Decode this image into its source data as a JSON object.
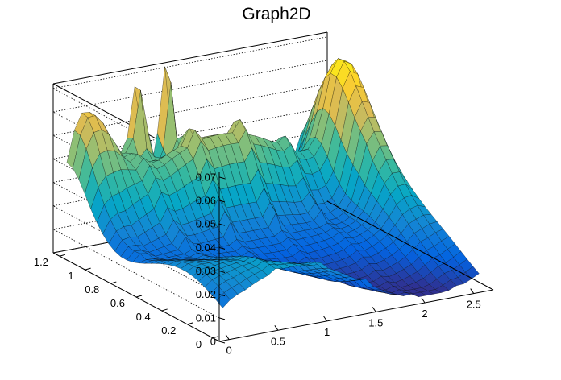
{
  "chart_data": {
    "type": "surface",
    "title": "Graph2D",
    "xlabel": "",
    "ylabel": "",
    "zlabel": "",
    "xlim": [
      -0.1,
      2.7
    ],
    "ylim": [
      -0.05,
      1.25
    ],
    "zlim": [
      0,
      0.072
    ],
    "x_ticks": [
      0,
      0.5,
      1,
      1.5,
      2,
      2.5
    ],
    "x_tick_labels": [
      "0",
      "0.5",
      "1",
      "1.5",
      "2",
      "2.5"
    ],
    "y_ticks": [
      0,
      0.2,
      0.4,
      0.6,
      0.8,
      1,
      1.2
    ],
    "y_tick_labels": [
      "0",
      "0.2",
      "0.4",
      "0.6",
      "0.8",
      "1",
      "1.2"
    ],
    "z_ticks": [
      0,
      0.01,
      0.02,
      0.03,
      0.04,
      0.05,
      0.06,
      0.07
    ],
    "z_tick_labels": [
      "0",
      "0.01",
      "0.02",
      "0.03",
      "0.04",
      "0.05",
      "0.06",
      "0.07"
    ],
    "palette": [
      "#352a87",
      "#0363e1",
      "#1485d4",
      "#06a7c6",
      "#38b99e",
      "#92bf73",
      "#d9ba56",
      "#fcce2e",
      "#f9fb0e"
    ],
    "surface_features": [
      {
        "x": 0.2,
        "y": 1.2,
        "z": 0.035,
        "sigma_x": 0.18,
        "sigma_y": 0.12
      },
      {
        "x": 1.0,
        "y": 1.22,
        "z": 0.068,
        "sigma_x": 0.05,
        "sigma_y": 0.04
      },
      {
        "x": 0.7,
        "y": 1.2,
        "z": 0.045,
        "sigma_x": 0.06,
        "sigma_y": 0.04
      },
      {
        "x": 2.5,
        "y": 0.9,
        "z": 0.05,
        "sigma_x": 0.15,
        "sigma_y": 0.25
      },
      {
        "x": 1.6,
        "y": 1.0,
        "z": 0.035,
        "sigma_x": 0.8,
        "sigma_y": 0.12
      }
    ]
  }
}
